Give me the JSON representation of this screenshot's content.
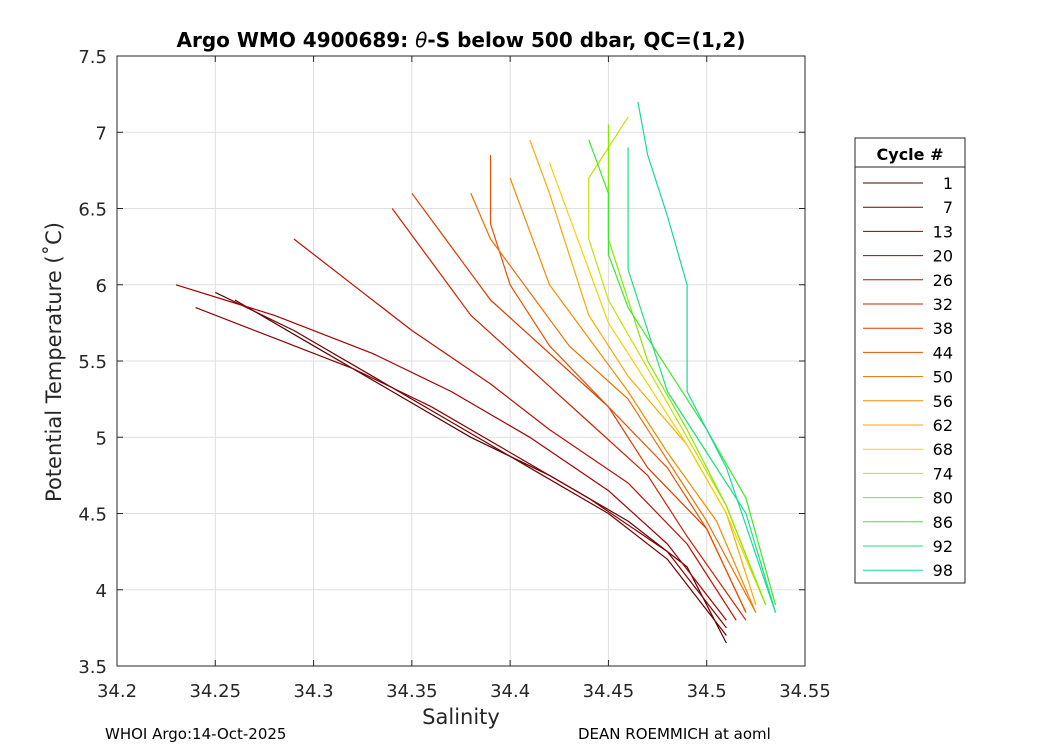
{
  "chart_data": {
    "type": "line",
    "title": "Argo WMO 4900689: θ-S below 500 dbar,  QC=(1,2)",
    "title_parts": {
      "prefix": "Argo WMO 4900689: ",
      "theta": "θ",
      "suffix": "-S below 500 dbar,  QC=(1,2)"
    },
    "xlabel": "Salinity",
    "ylabel": "Potential Temperature (˚C)",
    "xlim": [
      34.2,
      34.55
    ],
    "ylim": [
      3.5,
      7.5
    ],
    "x_ticks": [
      "34.2",
      "34.25",
      "34.3",
      "34.35",
      "34.4",
      "34.45",
      "34.5",
      "34.55"
    ],
    "y_ticks": [
      "3.5",
      "4",
      "4.5",
      "5",
      "5.5",
      "6",
      "6.5",
      "7",
      "7.5"
    ],
    "grid": true,
    "legend_title": "Cycle #",
    "legend_position": "right-outside",
    "series": [
      {
        "name": "1",
        "color": "#5a0000",
        "points": [
          [
            34.26,
            5.9
          ],
          [
            34.3,
            5.6
          ],
          [
            34.34,
            5.3
          ],
          [
            34.38,
            5.0
          ],
          [
            34.42,
            4.75
          ],
          [
            34.46,
            4.45
          ],
          [
            34.49,
            4.15
          ],
          [
            34.51,
            3.65
          ]
        ]
      },
      {
        "name": "7",
        "color": "#6e0000",
        "points": [
          [
            34.25,
            5.95
          ],
          [
            34.29,
            5.7
          ],
          [
            34.33,
            5.4
          ],
          [
            34.37,
            5.1
          ],
          [
            34.41,
            4.8
          ],
          [
            34.45,
            4.5
          ],
          [
            34.48,
            4.2
          ],
          [
            34.51,
            3.7
          ]
        ]
      },
      {
        "name": "13",
        "color": "#8a0000",
        "points": [
          [
            34.24,
            5.85
          ],
          [
            34.28,
            5.65
          ],
          [
            34.32,
            5.45
          ],
          [
            34.36,
            5.2
          ],
          [
            34.4,
            4.9
          ],
          [
            34.44,
            4.6
          ],
          [
            34.48,
            4.25
          ],
          [
            34.51,
            3.75
          ]
        ]
      },
      {
        "name": "20",
        "color": "#a30000",
        "points": [
          [
            34.23,
            6.0
          ],
          [
            34.28,
            5.8
          ],
          [
            34.33,
            5.55
          ],
          [
            34.37,
            5.3
          ],
          [
            34.41,
            5.0
          ],
          [
            34.45,
            4.65
          ],
          [
            34.48,
            4.3
          ],
          [
            34.51,
            3.8
          ]
        ]
      },
      {
        "name": "26",
        "color": "#bb0f00",
        "points": [
          [
            34.29,
            6.3
          ],
          [
            34.32,
            6.0
          ],
          [
            34.35,
            5.7
          ],
          [
            34.39,
            5.35
          ],
          [
            34.42,
            5.05
          ],
          [
            34.46,
            4.7
          ],
          [
            34.49,
            4.3
          ],
          [
            34.515,
            3.8
          ]
        ]
      },
      {
        "name": "32",
        "color": "#cc2200",
        "points": [
          [
            34.34,
            6.5
          ],
          [
            34.36,
            6.15
          ],
          [
            34.38,
            5.8
          ],
          [
            34.41,
            5.45
          ],
          [
            34.44,
            5.1
          ],
          [
            34.47,
            4.75
          ],
          [
            34.49,
            4.35
          ],
          [
            34.52,
            3.8
          ]
        ]
      },
      {
        "name": "38",
        "color": "#d83a00",
        "points": [
          [
            34.35,
            6.6
          ],
          [
            34.37,
            6.25
          ],
          [
            34.39,
            5.9
          ],
          [
            34.42,
            5.55
          ],
          [
            34.45,
            5.2
          ],
          [
            34.47,
            4.8
          ],
          [
            34.5,
            4.4
          ],
          [
            34.52,
            3.85
          ]
        ]
      },
      {
        "name": "44",
        "color": "#e25200",
        "points": [
          [
            34.39,
            6.85
          ],
          [
            34.39,
            6.4
          ],
          [
            34.4,
            6.0
          ],
          [
            34.42,
            5.6
          ],
          [
            34.45,
            5.2
          ],
          [
            34.48,
            4.8
          ],
          [
            34.5,
            4.4
          ],
          [
            34.52,
            3.85
          ]
        ]
      },
      {
        "name": "50",
        "color": "#ea6e00",
        "points": [
          [
            34.38,
            6.6
          ],
          [
            34.39,
            6.3
          ],
          [
            34.41,
            5.95
          ],
          [
            34.43,
            5.6
          ],
          [
            34.46,
            5.25
          ],
          [
            34.48,
            4.85
          ],
          [
            34.5,
            4.45
          ],
          [
            34.525,
            3.85
          ]
        ]
      },
      {
        "name": "56",
        "color": "#f08c00",
        "points": [
          [
            34.4,
            6.7
          ],
          [
            34.41,
            6.35
          ],
          [
            34.42,
            6.0
          ],
          [
            34.44,
            5.65
          ],
          [
            34.46,
            5.3
          ],
          [
            34.48,
            4.9
          ],
          [
            34.505,
            4.45
          ],
          [
            34.525,
            3.85
          ]
        ]
      },
      {
        "name": "62",
        "color": "#f5aa00",
        "points": [
          [
            34.41,
            6.95
          ],
          [
            34.42,
            6.6
          ],
          [
            34.43,
            6.2
          ],
          [
            34.44,
            5.8
          ],
          [
            34.46,
            5.4
          ],
          [
            34.49,
            4.95
          ],
          [
            34.51,
            4.5
          ],
          [
            34.525,
            3.9
          ]
        ]
      },
      {
        "name": "68",
        "color": "#f2d300",
        "points": [
          [
            34.42,
            6.8
          ],
          [
            34.43,
            6.45
          ],
          [
            34.44,
            6.1
          ],
          [
            34.45,
            5.75
          ],
          [
            34.47,
            5.35
          ],
          [
            34.49,
            4.95
          ],
          [
            34.51,
            4.5
          ],
          [
            34.53,
            3.9
          ]
        ]
      },
      {
        "name": "74",
        "color": "#c8e000",
        "points": [
          [
            34.46,
            7.1
          ],
          [
            34.44,
            6.7
          ],
          [
            34.44,
            6.3
          ],
          [
            34.45,
            5.9
          ],
          [
            34.47,
            5.45
          ],
          [
            34.49,
            5.0
          ],
          [
            34.51,
            4.55
          ],
          [
            34.53,
            3.9
          ]
        ]
      },
      {
        "name": "80",
        "color": "#86e800",
        "points": [
          [
            34.45,
            7.05
          ],
          [
            34.45,
            6.7
          ],
          [
            34.45,
            6.3
          ],
          [
            34.46,
            5.9
          ],
          [
            34.47,
            5.5
          ],
          [
            34.49,
            5.05
          ],
          [
            34.51,
            4.55
          ],
          [
            34.53,
            3.9
          ]
        ]
      },
      {
        "name": "86",
        "color": "#3ee62a",
        "points": [
          [
            34.44,
            6.95
          ],
          [
            34.45,
            6.6
          ],
          [
            34.45,
            6.2
          ],
          [
            34.46,
            5.85
          ],
          [
            34.48,
            5.45
          ],
          [
            34.5,
            5.05
          ],
          [
            34.52,
            4.6
          ],
          [
            34.535,
            3.9
          ]
        ]
      },
      {
        "name": "92",
        "color": "#1de07a",
        "points": [
          [
            34.46,
            6.9
          ],
          [
            34.46,
            6.5
          ],
          [
            34.46,
            6.1
          ],
          [
            34.47,
            5.7
          ],
          [
            34.48,
            5.3
          ],
          [
            34.5,
            4.9
          ],
          [
            34.52,
            4.5
          ],
          [
            34.535,
            3.85
          ]
        ]
      },
      {
        "name": "98",
        "color": "#18d8a2",
        "points": [
          [
            34.465,
            7.2
          ],
          [
            34.47,
            6.85
          ],
          [
            34.48,
            6.45
          ],
          [
            34.49,
            6.0
          ],
          [
            34.49,
            5.6
          ],
          [
            34.49,
            5.3
          ],
          [
            34.51,
            4.8
          ],
          [
            34.535,
            3.85
          ]
        ]
      }
    ]
  },
  "footer": {
    "left": "WHOI Argo:14-Oct-2025",
    "right": "DEAN ROEMMICH at aoml"
  }
}
